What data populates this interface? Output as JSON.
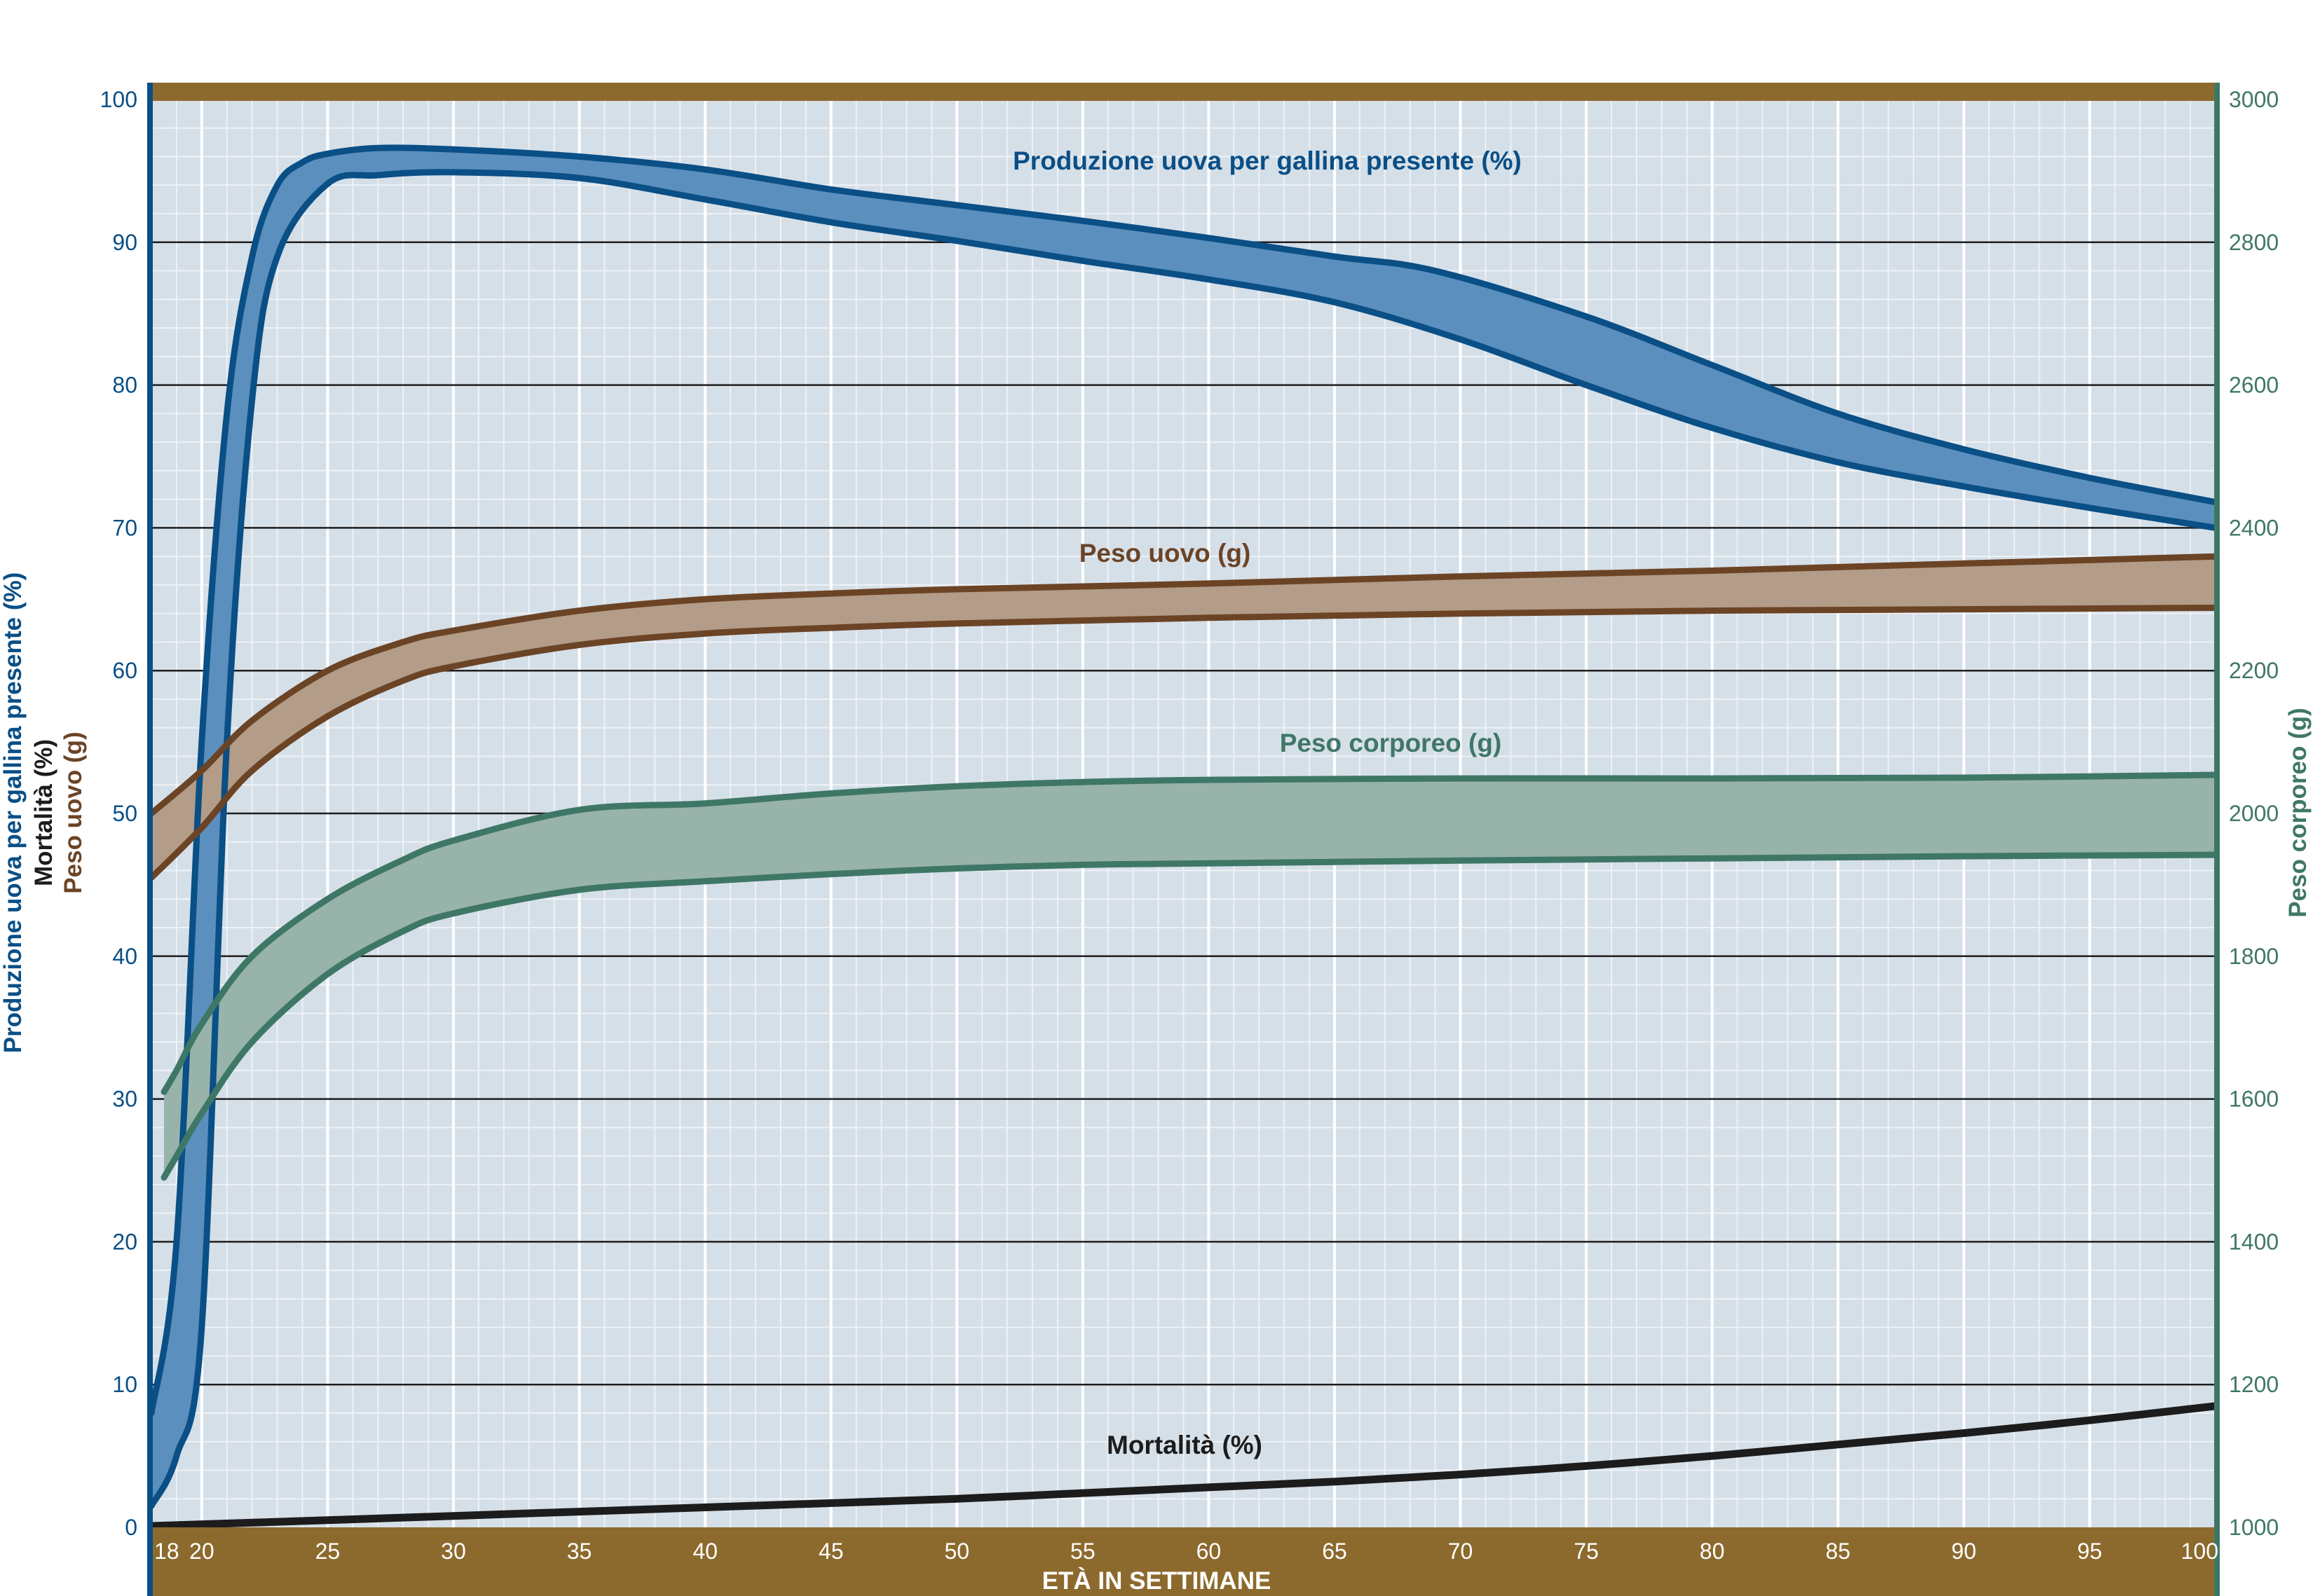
{
  "chart_data": {
    "type": "area",
    "title": "",
    "xlabel": "ETÀ IN SETTIMANE",
    "x_ticks": [
      18,
      20,
      25,
      30,
      35,
      40,
      45,
      50,
      55,
      60,
      65,
      70,
      75,
      80,
      85,
      90,
      95,
      100
    ],
    "xlim": [
      18,
      100
    ],
    "y_left": {
      "labels": [
        "Produzione uova per gallina presente  (%)",
        "Mortalità  (%)",
        "Peso uovo  (g)"
      ],
      "ticks": [
        0,
        10,
        20,
        30,
        40,
        50,
        60,
        70,
        80,
        90,
        100
      ],
      "ylim": [
        0,
        100
      ]
    },
    "y_right": {
      "label": "Peso corporeo  (g)",
      "ticks": [
        1000,
        1200,
        1400,
        1600,
        1800,
        2000,
        2200,
        2400,
        2600,
        2800,
        3000
      ],
      "ylim": [
        1000,
        3000
      ]
    },
    "grid": true,
    "series": [
      {
        "name": "Produzione uova per gallina presente  (%)",
        "kind": "band",
        "axis": "left",
        "color": "#0a4f86",
        "fill": "#5b8fbd",
        "upper": [
          [
            18,
            8
          ],
          [
            19,
            20
          ],
          [
            20,
            55
          ],
          [
            21,
            78
          ],
          [
            22,
            89
          ],
          [
            23,
            94
          ],
          [
            24,
            95.6
          ],
          [
            25,
            96.2
          ],
          [
            27,
            96.6
          ],
          [
            30,
            96.5
          ],
          [
            35,
            96
          ],
          [
            40,
            95.1
          ],
          [
            45,
            93.7
          ],
          [
            50,
            92.6
          ],
          [
            55,
            91.5
          ],
          [
            60,
            90.3
          ],
          [
            65,
            89
          ],
          [
            69,
            88
          ],
          [
            75,
            84.8
          ],
          [
            80,
            81.4
          ],
          [
            85,
            78
          ],
          [
            90,
            75.5
          ],
          [
            95,
            73.5
          ],
          [
            100,
            71.8
          ]
        ],
        "lower": [
          [
            18,
            1.5
          ],
          [
            19,
            5
          ],
          [
            20,
            14
          ],
          [
            21,
            55
          ],
          [
            22,
            79
          ],
          [
            23,
            89
          ],
          [
            25,
            94.1
          ],
          [
            27,
            94.7
          ],
          [
            30,
            94.9
          ],
          [
            35,
            94.5
          ],
          [
            40,
            93
          ],
          [
            45,
            91.4
          ],
          [
            50,
            90.1
          ],
          [
            55,
            88.7
          ],
          [
            60,
            87.4
          ],
          [
            65,
            85.8
          ],
          [
            70,
            83.2
          ],
          [
            75,
            80
          ],
          [
            80,
            77
          ],
          [
            85,
            74.6
          ],
          [
            90,
            72.9
          ],
          [
            95,
            71.4
          ],
          [
            100,
            70
          ]
        ]
      },
      {
        "name": "Peso uovo (g)",
        "kind": "band",
        "axis": "left",
        "color": "#6b4426",
        "fill": "#b39c88",
        "upper": [
          [
            18,
            50
          ],
          [
            20,
            53
          ],
          [
            22,
            56.5
          ],
          [
            25,
            60
          ],
          [
            28,
            62
          ],
          [
            30,
            62.8
          ],
          [
            35,
            64.2
          ],
          [
            40,
            65
          ],
          [
            45,
            65.4
          ],
          [
            50,
            65.7
          ],
          [
            60,
            66.1
          ],
          [
            70,
            66.6
          ],
          [
            80,
            67
          ],
          [
            90,
            67.5
          ],
          [
            100,
            68
          ]
        ],
        "lower": [
          [
            18,
            45.5
          ],
          [
            20,
            49
          ],
          [
            22,
            53
          ],
          [
            25,
            56.8
          ],
          [
            28,
            59.3
          ],
          [
            30,
            60.3
          ],
          [
            35,
            61.8
          ],
          [
            40,
            62.6
          ],
          [
            45,
            63
          ],
          [
            50,
            63.3
          ],
          [
            60,
            63.7
          ],
          [
            70,
            64
          ],
          [
            80,
            64.2
          ],
          [
            90,
            64.3
          ],
          [
            100,
            64.4
          ]
        ]
      },
      {
        "name": "Peso corporeo (g)",
        "kind": "band",
        "axis": "right",
        "color": "#3f7766",
        "fill": "#98b3aa",
        "upper": [
          [
            18.5,
            1610
          ],
          [
            19,
            1640
          ],
          [
            20,
            1705
          ],
          [
            22,
            1800
          ],
          [
            25,
            1880
          ],
          [
            28,
            1935
          ],
          [
            30,
            1962
          ],
          [
            35,
            2005
          ],
          [
            40,
            2014
          ],
          [
            45,
            2028
          ],
          [
            50,
            2038
          ],
          [
            55,
            2044
          ],
          [
            60,
            2047
          ],
          [
            70,
            2049
          ],
          [
            80,
            2049
          ],
          [
            90,
            2050
          ],
          [
            100,
            2054
          ]
        ],
        "lower": [
          [
            18.5,
            1490
          ],
          [
            19,
            1520
          ],
          [
            20,
            1580
          ],
          [
            22,
            1680
          ],
          [
            25,
            1775
          ],
          [
            28,
            1835
          ],
          [
            30,
            1860
          ],
          [
            35,
            1893
          ],
          [
            40,
            1905
          ],
          [
            45,
            1915
          ],
          [
            50,
            1923
          ],
          [
            55,
            1928
          ],
          [
            60,
            1930
          ],
          [
            70,
            1934
          ],
          [
            80,
            1937
          ],
          [
            90,
            1940
          ],
          [
            100,
            1942
          ]
        ]
      },
      {
        "name": "Mortalità  (%)",
        "kind": "line",
        "axis": "left",
        "color": "#1c1c1c",
        "points": [
          [
            18,
            0.1
          ],
          [
            25,
            0.5
          ],
          [
            30,
            0.8
          ],
          [
            35,
            1.1
          ],
          [
            40,
            1.4
          ],
          [
            45,
            1.7
          ],
          [
            50,
            2
          ],
          [
            55,
            2.4
          ],
          [
            60,
            2.8
          ],
          [
            65,
            3.2
          ],
          [
            70,
            3.7
          ],
          [
            75,
            4.3
          ],
          [
            80,
            5
          ],
          [
            85,
            5.8
          ],
          [
            90,
            6.6
          ],
          [
            95,
            7.5
          ],
          [
            100,
            8.5
          ]
        ]
      }
    ],
    "colors": {
      "plot_bg": "#d5dfe8",
      "frame": "#8c6a2d",
      "left_axis": "#0a4f86",
      "right_axis": "#3f7766",
      "x_tick_text": "#ffffff",
      "title_white": "#ffffff"
    }
  }
}
